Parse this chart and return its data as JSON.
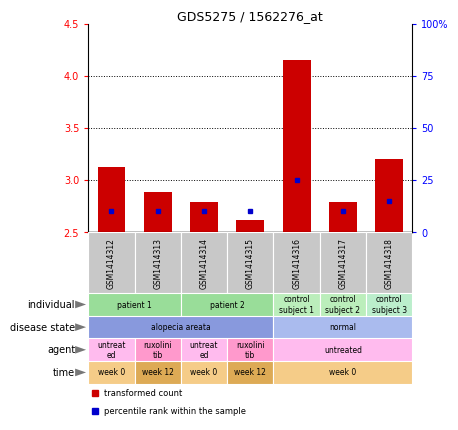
{
  "title": "GDS5275 / 1562276_at",
  "samples": [
    "GSM1414312",
    "GSM1414313",
    "GSM1414314",
    "GSM1414315",
    "GSM1414316",
    "GSM1414317",
    "GSM1414318"
  ],
  "transformed_count": [
    3.12,
    2.88,
    2.79,
    2.62,
    4.15,
    2.79,
    3.2
  ],
  "percentile_rank": [
    10,
    10,
    10,
    10,
    25,
    10,
    15
  ],
  "ylim": [
    2.5,
    4.5
  ],
  "yticks_left": [
    2.5,
    3.0,
    3.5,
    4.0,
    4.5
  ],
  "yticks_right": [
    0,
    25,
    50,
    75,
    100
  ],
  "bar_color": "#cc0000",
  "dot_color": "#0000cc",
  "annotation_rows": [
    {
      "label": "individual",
      "groups": [
        {
          "text": "patient 1",
          "span": [
            0,
            2
          ],
          "color": "#99dd99"
        },
        {
          "text": "patient 2",
          "span": [
            2,
            4
          ],
          "color": "#99dd99"
        },
        {
          "text": "control\nsubject 1",
          "span": [
            4,
            5
          ],
          "color": "#bbeebb"
        },
        {
          "text": "control\nsubject 2",
          "span": [
            5,
            6
          ],
          "color": "#bbeebb"
        },
        {
          "text": "control\nsubject 3",
          "span": [
            6,
            7
          ],
          "color": "#bbeecc"
        }
      ]
    },
    {
      "label": "disease state",
      "groups": [
        {
          "text": "alopecia areata",
          "span": [
            0,
            4
          ],
          "color": "#8899dd"
        },
        {
          "text": "normal",
          "span": [
            4,
            7
          ],
          "color": "#aabbee"
        }
      ]
    },
    {
      "label": "agent",
      "groups": [
        {
          "text": "untreat\ned",
          "span": [
            0,
            1
          ],
          "color": "#ffbbee"
        },
        {
          "text": "ruxolini\ntib",
          "span": [
            1,
            2
          ],
          "color": "#ff99cc"
        },
        {
          "text": "untreat\ned",
          "span": [
            2,
            3
          ],
          "color": "#ffbbee"
        },
        {
          "text": "ruxolini\ntib",
          "span": [
            3,
            4
          ],
          "color": "#ff99cc"
        },
        {
          "text": "untreated",
          "span": [
            4,
            7
          ],
          "color": "#ffbbee"
        }
      ]
    },
    {
      "label": "time",
      "groups": [
        {
          "text": "week 0",
          "span": [
            0,
            1
          ],
          "color": "#f5cc88"
        },
        {
          "text": "week 12",
          "span": [
            1,
            2
          ],
          "color": "#ddaa55"
        },
        {
          "text": "week 0",
          "span": [
            2,
            3
          ],
          "color": "#f5cc88"
        },
        {
          "text": "week 12",
          "span": [
            3,
            4
          ],
          "color": "#ddaa55"
        },
        {
          "text": "week 0",
          "span": [
            4,
            7
          ],
          "color": "#f5cc88"
        }
      ]
    }
  ],
  "legend_items": [
    {
      "label": "transformed count",
      "color": "#cc0000"
    },
    {
      "label": "percentile rank within the sample",
      "color": "#0000cc"
    }
  ],
  "bar_bottom": 2.5,
  "sample_box_color": "#c8c8c8",
  "arrow_color": "#555555"
}
